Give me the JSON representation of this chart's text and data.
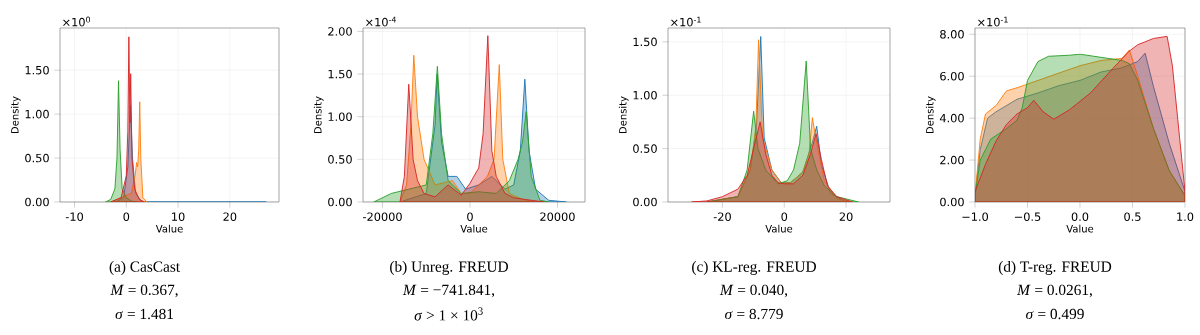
{
  "chart_data": [
    {
      "type": "area",
      "title": "(a) CasCast",
      "xlabel": "Value",
      "ylabel": "Density",
      "grid": true,
      "annotations": [
        "×10$^{0}$",
        "*M* = 0.367,",
        "*σ* = 1.481"
      ],
      "xlim": [
        -12.8,
        29.5
      ],
      "ylim": [
        0,
        1.98
      ],
      "xticks": [
        -10,
        0,
        10,
        20
      ],
      "yticks": [
        {
          "value": 0,
          "label": "0.00"
        },
        {
          "value": 0.5,
          "label": "0.50"
        },
        {
          "value": 1.0,
          "label": "1.00"
        },
        {
          "value": 1.5,
          "label": "1.50"
        }
      ],
      "series": [
        {
          "color": "#1f77b4",
          "x": [
            -2,
            -0.5,
            0.3,
            0.8,
            1.2,
            1.8,
            3,
            27
          ],
          "values": [
            0,
            0.05,
            0.4,
            1.1,
            0.5,
            0.1,
            0,
            0
          ]
        },
        {
          "color": "#ff7f0e",
          "x": [
            -3,
            -1,
            1,
            1.7,
            2.0,
            2.2,
            2.4,
            2.6,
            2.8,
            3.2,
            4
          ],
          "values": [
            0,
            0.05,
            0.1,
            0.3,
            0.45,
            0.4,
            0.6,
            1.14,
            0.5,
            0.05,
            0
          ]
        },
        {
          "color": "#2ca02c",
          "x": [
            -4,
            -3,
            -2.2,
            -1.8,
            -1.5,
            -1.2,
            -0.8,
            0,
            1,
            2
          ],
          "values": [
            0,
            0.03,
            0.15,
            0.5,
            1.38,
            0.6,
            0.15,
            0.05,
            0.01,
            0
          ]
        },
        {
          "color": "#d62728",
          "x": [
            -3,
            -1,
            0,
            0.3,
            0.5,
            0.7,
            0.85,
            1.1,
            1.6,
            2.5,
            3.5
          ],
          "values": [
            0,
            0.05,
            0.3,
            0.8,
            1.88,
            0.9,
            1.46,
            0.5,
            0.15,
            0.03,
            0
          ]
        }
      ]
    },
    {
      "type": "area",
      "title": "(b) Unreg. FREUD",
      "xlabel": "Value",
      "ylabel": "Density",
      "grid": true,
      "annotations": [
        "×10$^{-4}$",
        "*M* = −741.841,",
        "*σ* > 1 × 10$^{3}$"
      ],
      "xlim": [
        -24460,
        26300
      ],
      "ylim": [
        0,
        2.04
      ],
      "xticks": [
        -20000,
        0,
        20000
      ],
      "yticks": [
        {
          "value": 0,
          "label": "0.00"
        },
        {
          "value": 0.5,
          "label": "0.50"
        },
        {
          "value": 1.0,
          "label": "1.00"
        },
        {
          "value": 1.5,
          "label": "1.50"
        },
        {
          "value": 2.0,
          "label": "2.00"
        }
      ],
      "series": [
        {
          "color": "#1f77b4",
          "x": [
            -16000,
            -10000,
            -8000,
            -7500,
            -6500,
            -5000,
            -3000,
            -1000,
            2000,
            5000,
            8000,
            10000,
            11500,
            12540,
            13500,
            15000,
            18000,
            22000
          ],
          "values": [
            0,
            0.1,
            0.9,
            1.5,
            0.7,
            0.3,
            0.3,
            0.15,
            0.2,
            0.3,
            0.15,
            0.2,
            0.6,
            1.44,
            0.6,
            0.15,
            0.02,
            0
          ]
        },
        {
          "color": "#ff7f0e",
          "x": [
            -16000,
            -14500,
            -13500,
            -12850,
            -12000,
            -10500,
            -8000,
            -4000,
            -2000,
            0,
            4000,
            5500,
            6700,
            7500,
            9000,
            12000,
            15000
          ],
          "values": [
            0,
            0.2,
            0.9,
            1.72,
            1.0,
            0.5,
            0.2,
            0.25,
            0.1,
            0.1,
            0.3,
            0.5,
            1.61,
            0.5,
            0.1,
            0.03,
            0
          ]
        },
        {
          "color": "#2ca02c",
          "x": [
            -22000,
            -18000,
            -14000,
            -10000,
            -8500,
            -7460,
            -6500,
            -5000,
            -2000,
            2000,
            6000,
            9000,
            11000,
            12000,
            12850,
            14000,
            16000,
            18000
          ],
          "values": [
            0,
            0.1,
            0.15,
            0.2,
            0.8,
            1.59,
            0.8,
            0.25,
            0.1,
            0.12,
            0.1,
            0.25,
            0.5,
            0.7,
            1.06,
            0.3,
            0.02,
            0
          ]
        },
        {
          "color": "#d62728",
          "x": [
            -16000,
            -15000,
            -14000,
            -13000,
            -12000,
            -10500,
            -8000,
            -5000,
            -2000,
            0,
            2000,
            3000,
            4080,
            5000,
            6000,
            8000,
            10000,
            14000,
            17000
          ],
          "values": [
            0,
            0.3,
            1.38,
            0.5,
            0.25,
            0.1,
            0.06,
            0.2,
            0.08,
            0.22,
            0.4,
            0.8,
            1.95,
            0.6,
            0.3,
            0.1,
            0.05,
            0.02,
            0
          ]
        }
      ]
    },
    {
      "type": "area",
      "title": "(c) KL-reg. FREUD",
      "xlabel": "Value",
      "ylabel": "Density",
      "grid": true,
      "annotations": [
        "×10$^{-1}$",
        "*M* = 0.040,",
        "*σ* = 8.779"
      ],
      "xlim": [
        -37.6,
        34.2
      ],
      "ylim": [
        0,
        1.63
      ],
      "xticks": [
        -20,
        0,
        20
      ],
      "yticks": [
        {
          "value": 0,
          "label": "0.00"
        },
        {
          "value": 0.5,
          "label": "0.50"
        },
        {
          "value": 1.0,
          "label": "1.00"
        },
        {
          "value": 1.5,
          "label": "1.50"
        }
      ],
      "series": [
        {
          "color": "#1f77b4",
          "x": [
            -25,
            -15,
            -11,
            -9,
            -7.6,
            -6.5,
            -4,
            -1,
            2,
            6,
            9,
            10.5,
            12,
            15,
            20
          ],
          "values": [
            0,
            0.05,
            0.3,
            0.7,
            1.55,
            0.6,
            0.3,
            0.18,
            0.18,
            0.28,
            0.55,
            0.71,
            0.35,
            0.08,
            0
          ]
        },
        {
          "color": "#ff7f0e",
          "x": [
            -25,
            -15,
            -11,
            -9.2,
            -8.3,
            -7,
            -4,
            -1,
            2,
            6,
            8,
            9.1,
            10.5,
            13,
            17,
            22
          ],
          "values": [
            0,
            0.05,
            0.3,
            0.7,
            1.52,
            0.6,
            0.3,
            0.18,
            0.18,
            0.28,
            0.45,
            0.79,
            0.55,
            0.2,
            0.03,
            0
          ]
        },
        {
          "color": "#2ca02c",
          "x": [
            -25,
            -15,
            -12,
            -9.9,
            -8.5,
            -6,
            -2,
            1,
            3,
            5,
            7.1,
            8.5,
            10.5,
            13,
            17,
            24
          ],
          "values": [
            0,
            0.05,
            0.3,
            0.85,
            0.5,
            0.3,
            0.17,
            0.2,
            0.3,
            0.55,
            1.32,
            0.5,
            0.3,
            0.15,
            0.05,
            0
          ]
        },
        {
          "color": "#d62728",
          "x": [
            -30,
            -25,
            -20,
            -15,
            -12,
            -9.5,
            -7.8,
            -6,
            -4,
            -2,
            0,
            3,
            6,
            8.5,
            10.3,
            12,
            14,
            17,
            22
          ],
          "values": [
            0,
            0.01,
            0.05,
            0.12,
            0.25,
            0.55,
            0.75,
            0.45,
            0.25,
            0.18,
            0.17,
            0.17,
            0.25,
            0.45,
            0.64,
            0.4,
            0.15,
            0.05,
            0
          ]
        }
      ]
    },
    {
      "type": "area",
      "title": "(d) T-reg. FREUD",
      "xlabel": "Value",
      "ylabel": "Density",
      "grid": true,
      "annotations": [
        "×10$^{-1}$",
        "*M* = 0.0261,",
        "*σ* = 0.499"
      ],
      "xlim": [
        -1,
        1
      ],
      "ylim": [
        0,
        8.3
      ],
      "xticks": [
        {
          "value": -1,
          "label": "−1.0"
        },
        {
          "value": -0.5,
          "label": "−0.5"
        },
        {
          "value": 0,
          "label": "0.0"
        },
        {
          "value": 0.5,
          "label": "0.5"
        },
        {
          "value": 1,
          "label": "1.0"
        }
      ],
      "yticks": [
        {
          "value": 0,
          "label": "0.00"
        },
        {
          "value": 2,
          "label": "2.00"
        },
        {
          "value": 4,
          "label": "4.00"
        },
        {
          "value": 6,
          "label": "6.00"
        },
        {
          "value": 8,
          "label": "8.00"
        }
      ],
      "series": [
        {
          "color": "#1f77b4",
          "x": [
            -1,
            -0.95,
            -0.88,
            -0.8,
            -0.6,
            -0.4,
            -0.2,
            0,
            0.2,
            0.4,
            0.55,
            0.62,
            0.7,
            0.85,
            1
          ],
          "values": [
            0.3,
            2.5,
            4,
            4.3,
            4.9,
            5.2,
            5.55,
            5.8,
            6.2,
            6.4,
            6.7,
            7.1,
            5.5,
            2.8,
            0.5
          ]
        },
        {
          "color": "#ff7f0e",
          "x": [
            -1,
            -0.95,
            -0.9,
            -0.8,
            -0.7,
            -0.6,
            -0.4,
            -0.2,
            0,
            0.2,
            0.4,
            0.47,
            0.55,
            0.7,
            0.85,
            1
          ],
          "values": [
            0.3,
            3,
            4.2,
            4.6,
            5.3,
            5.45,
            5.8,
            6.15,
            6.5,
            6.75,
            6.85,
            7.25,
            6,
            3.5,
            1.5,
            0.3
          ]
        },
        {
          "color": "#2ca02c",
          "x": [
            -1,
            -0.95,
            -0.85,
            -0.7,
            -0.6,
            -0.55,
            -0.5,
            -0.4,
            -0.3,
            -0.1,
            0,
            0.2,
            0.4,
            0.47,
            0.55,
            0.7,
            0.85,
            1
          ],
          "values": [
            0.3,
            2,
            3,
            3.5,
            3.9,
            4.5,
            5.8,
            6.7,
            6.95,
            7,
            7.05,
            6.9,
            6.75,
            6.6,
            5.8,
            3.5,
            1.5,
            0.3
          ]
        },
        {
          "color": "#d62728",
          "x": [
            -1,
            -0.9,
            -0.8,
            -0.7,
            -0.6,
            -0.5,
            -0.44,
            -0.35,
            -0.25,
            -0.1,
            0.1,
            0.3,
            0.47,
            0.55,
            0.7,
            0.83,
            0.88,
            0.95,
            1
          ],
          "values": [
            0.5,
            1.8,
            2.9,
            3.7,
            4.2,
            4.5,
            4.85,
            4.3,
            3.95,
            4.4,
            5.2,
            6.3,
            7.2,
            7.5,
            7.8,
            7.9,
            6.5,
            3,
            0.5
          ]
        }
      ]
    }
  ]
}
